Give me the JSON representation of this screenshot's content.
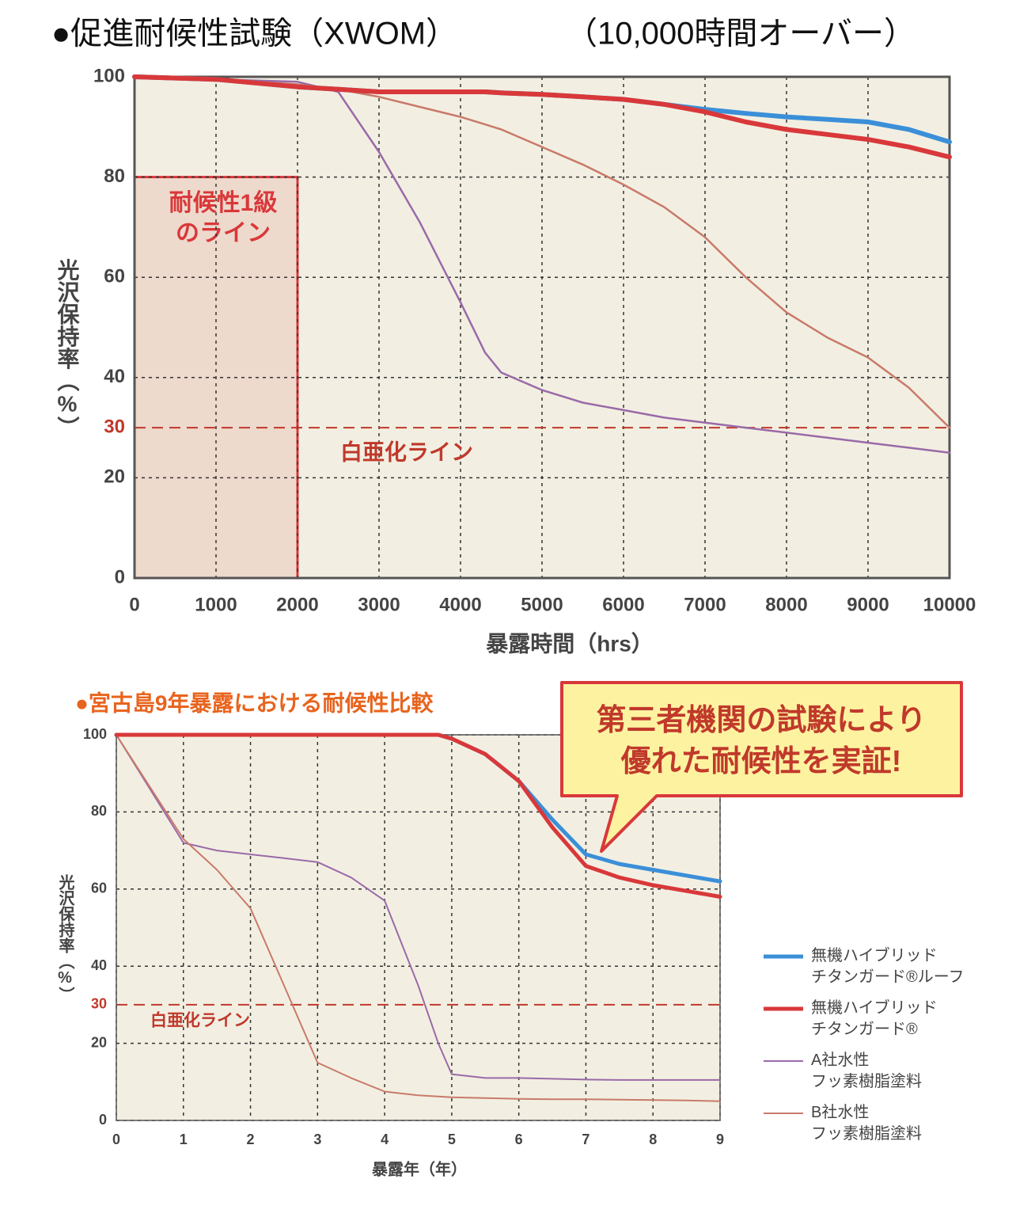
{
  "chart_data": [
    {
      "type": "line",
      "title": "●促進耐候性試験（XWOM）",
      "subtitle": "（10,000時間オーバー）",
      "title_color": "#111111",
      "xlabel": "暴露時間（hrs）",
      "ylabel": "光沢保持率（%）",
      "x": [
        0,
        1000,
        2000,
        2500,
        3000,
        3500,
        4000,
        4300,
        4500,
        5000,
        5500,
        6000,
        6500,
        7000,
        7500,
        8000,
        8500,
        9000,
        9500,
        10000
      ],
      "series": [
        {
          "color": "#3b8fd8",
          "width": 6,
          "values": [
            100,
            99.5,
            98,
            97.5,
            97,
            97,
            97,
            97,
            96.8,
            96.5,
            96,
            95.5,
            94.5,
            93.5,
            92.7,
            92,
            91.5,
            91,
            89.5,
            87
          ]
        },
        {
          "color": "#d9383a",
          "width": 6,
          "values": [
            100,
            99.5,
            98,
            97.5,
            97,
            97,
            97,
            97,
            96.8,
            96.5,
            96,
            95.5,
            94.5,
            93,
            91,
            89.5,
            88.5,
            87.5,
            86,
            84
          ]
        },
        {
          "color": "#9a6aa8",
          "width": 2.5,
          "values": [
            100,
            99.5,
            99,
            97,
            85,
            71,
            55,
            45,
            41,
            37.5,
            35,
            33.5,
            32,
            31,
            30,
            29,
            28,
            27,
            26,
            25
          ]
        },
        {
          "color": "#c97a6a",
          "width": 2.5,
          "values": [
            100,
            99.5,
            98.5,
            97.5,
            96,
            94,
            92,
            90.5,
            89.5,
            86,
            82.5,
            78.5,
            74,
            68,
            60,
            53,
            48,
            44,
            38,
            30
          ]
        }
      ],
      "xlim": [
        0,
        10000
      ],
      "xticks": [
        0,
        1000,
        2000,
        3000,
        4000,
        5000,
        6000,
        7000,
        8000,
        9000,
        10000
      ],
      "ylim": [
        0,
        100
      ],
      "yticks": [
        0,
        20,
        30,
        40,
        60,
        80,
        100
      ],
      "grid": true,
      "hline": {
        "value": 30,
        "color": "#c0392b",
        "label": "白亜化ライン"
      },
      "region": {
        "xlim": [
          0,
          2000
        ],
        "ylim": [
          0,
          80
        ],
        "color": "#d9383a",
        "label": "耐候性1級\nのライン"
      }
    },
    {
      "type": "line",
      "title": "●宮古島9年暴露における耐候性比較",
      "title_color": "#e8641e",
      "xlabel": "暴露年（年）",
      "ylabel": "光沢保持率（%）",
      "x": [
        0,
        1,
        1.5,
        2,
        2.5,
        3,
        3.5,
        4,
        4.5,
        4.8,
        5,
        5.5,
        6,
        6.5,
        7,
        7.5,
        8,
        8.5,
        9
      ],
      "series": [
        {
          "name": "無機ハイブリッド\nチタンガード®ルーフ",
          "color": "#3b8fd8",
          "width": 5,
          "values": [
            100,
            100,
            100,
            100,
            100,
            100,
            100,
            100,
            100,
            100,
            99,
            95,
            88,
            78,
            69,
            66.5,
            65,
            63.5,
            62
          ]
        },
        {
          "name": "無機ハイブリッド\nチタンガード®",
          "color": "#d9383a",
          "width": 5,
          "values": [
            100,
            100,
            100,
            100,
            100,
            100,
            100,
            100,
            100,
            100,
            99,
            95,
            88,
            76,
            66,
            63,
            61,
            59.5,
            58
          ]
        },
        {
          "name": "A社水性\nフッ素樹脂塗料",
          "color": "#9a6aa8",
          "width": 2,
          "values": [
            100,
            72,
            70,
            69,
            68,
            67,
            63,
            57,
            35,
            20,
            12,
            11,
            11,
            10.8,
            10.6,
            10.5,
            10.5,
            10.5,
            10.5
          ]
        },
        {
          "name": "B社水性\nフッ素樹脂塗料",
          "color": "#c97a6a",
          "width": 2,
          "values": [
            100,
            73,
            65,
            55,
            35,
            15,
            11,
            7.5,
            6.5,
            6.2,
            6,
            5.8,
            5.6,
            5.5,
            5.5,
            5.4,
            5.3,
            5.2,
            5
          ]
        }
      ],
      "xlim": [
        0,
        9
      ],
      "xticks": [
        0,
        1,
        2,
        3,
        4,
        5,
        6,
        7,
        8,
        9
      ],
      "ylim": [
        0,
        100
      ],
      "yticks": [
        0,
        20,
        30,
        40,
        60,
        80,
        100
      ],
      "grid": true,
      "legend": "right",
      "hline": {
        "value": 30,
        "color": "#c0392b",
        "label": "白亜化ライン"
      },
      "callout": "第三者機関の試験により\n優れた耐候性を実証!"
    }
  ]
}
